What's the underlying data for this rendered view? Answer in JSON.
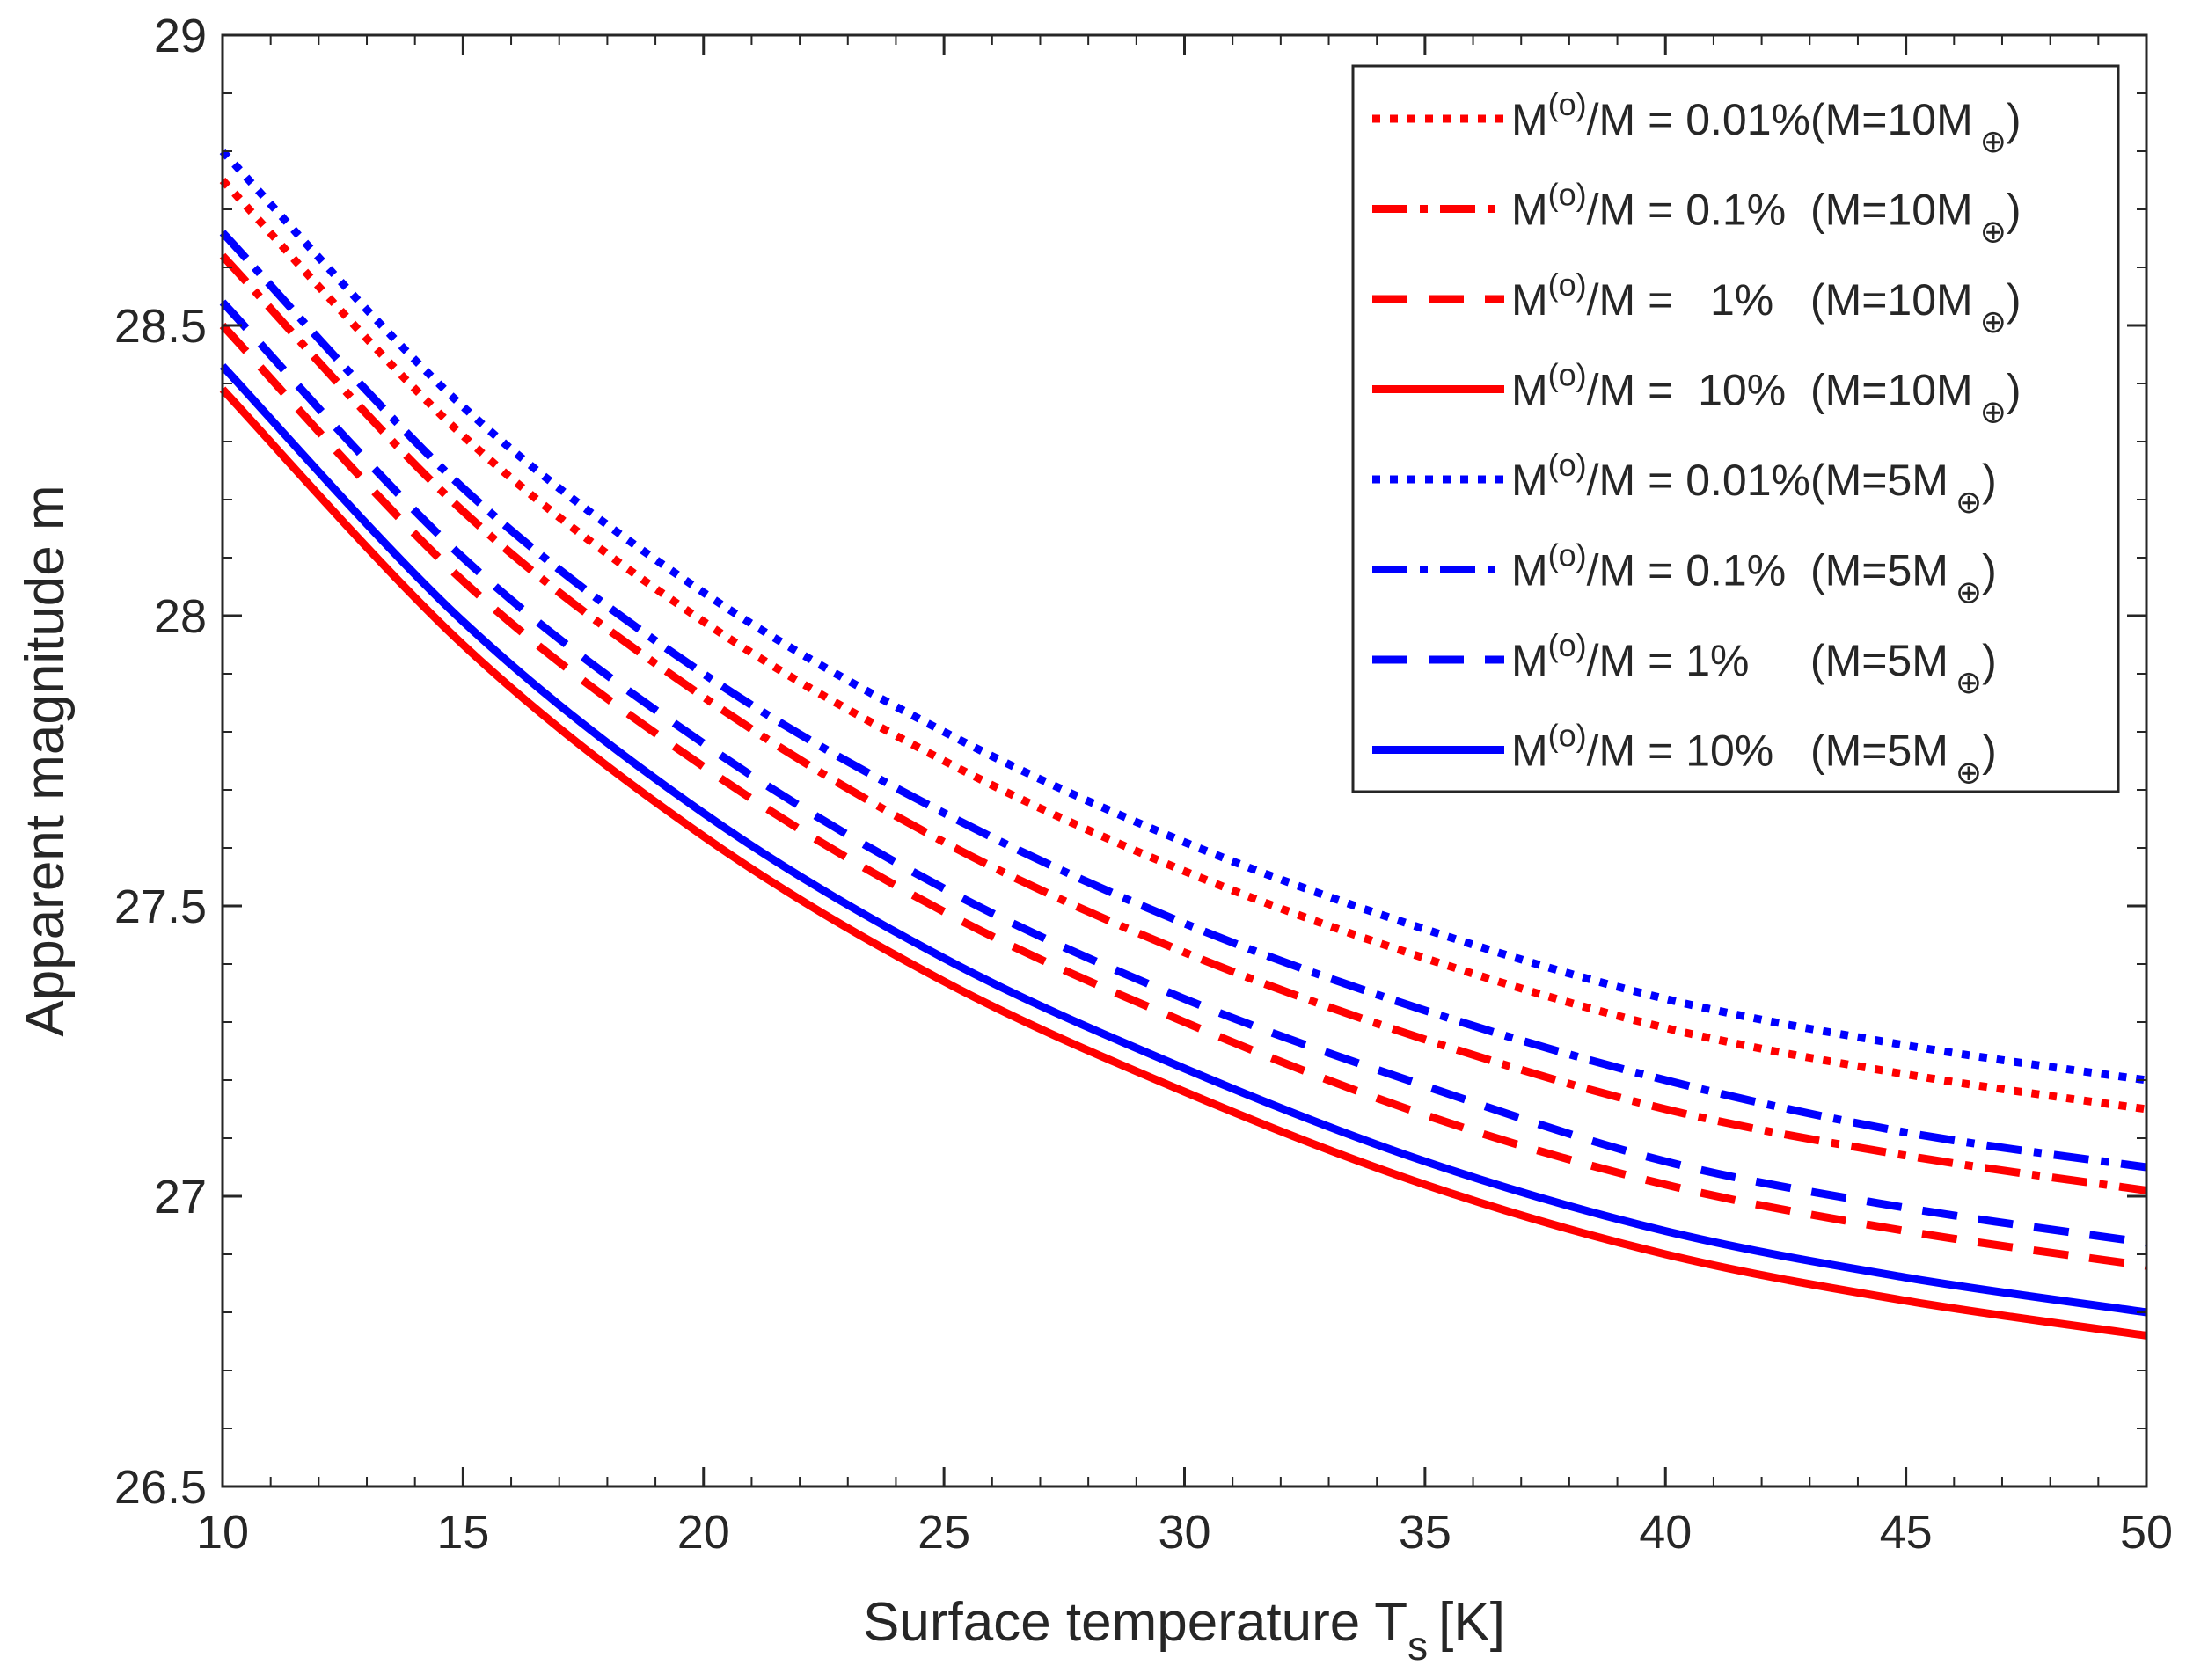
{
  "chart_data": {
    "type": "line",
    "title": "",
    "xlabel": "Surface temperature T",
    "xlabel_subscript": "s",
    "xlabel_unit": "[K]",
    "ylabel": "Apparent magnitude m",
    "xlim": [
      10,
      50
    ],
    "ylim": [
      26.5,
      29
    ],
    "xticks": [
      10,
      15,
      20,
      25,
      30,
      35,
      40,
      45,
      50
    ],
    "xtick_labels": [
      "10",
      "15",
      "20",
      "25",
      "30",
      "35",
      "40",
      "45",
      "50"
    ],
    "yticks": [
      26.5,
      27,
      27.5,
      28,
      28.5,
      29
    ],
    "ytick_labels": [
      "26.5",
      "27",
      "27.5",
      "28",
      "28.5",
      "29"
    ],
    "x": [
      10,
      15,
      20,
      25,
      30,
      35,
      40,
      45,
      50
    ],
    "grid": false,
    "legend_position": "top-right",
    "series": [
      {
        "name": "M(o)/M = 0.01%(M=10M⊕)",
        "color": "#ff0000",
        "style": "dotted",
        "values": [
          28.75,
          28.31,
          27.99,
          27.75,
          27.56,
          27.41,
          27.29,
          27.21,
          27.15
        ]
      },
      {
        "name": "M(o)/M = 0.1%  (M=10M⊕)",
        "color": "#ff0000",
        "style": "dashdot",
        "values": [
          28.62,
          28.18,
          27.86,
          27.61,
          27.42,
          27.27,
          27.15,
          27.07,
          27.01
        ]
      },
      {
        "name": "M(o)/M =   1%   (M=10M⊕)",
        "color": "#ff0000",
        "style": "dashed",
        "values": [
          28.5,
          28.06,
          27.74,
          27.49,
          27.3,
          27.14,
          27.02,
          26.94,
          26.88
        ]
      },
      {
        "name": "M(o)/M =  10%  (M=10M⊕)",
        "color": "#ff0000",
        "style": "solid",
        "values": [
          28.39,
          27.95,
          27.62,
          27.37,
          27.18,
          27.02,
          26.9,
          26.82,
          26.76
        ]
      },
      {
        "name": "M(o)/M = 0.01%(M=5M⊕)",
        "color": "#0000ff",
        "style": "dotted",
        "values": [
          28.8,
          28.36,
          28.04,
          27.8,
          27.61,
          27.46,
          27.34,
          27.26,
          27.2
        ]
      },
      {
        "name": "M(o)/M = 0.1%  (M=5M⊕)",
        "color": "#0000ff",
        "style": "dashdot",
        "values": [
          28.66,
          28.22,
          27.9,
          27.66,
          27.47,
          27.32,
          27.2,
          27.11,
          27.05
        ]
      },
      {
        "name": "M(o)/M = 1%     (M=5M⊕)",
        "color": "#0000ff",
        "style": "dashed",
        "values": [
          28.54,
          28.1,
          27.78,
          27.53,
          27.34,
          27.19,
          27.06,
          26.98,
          26.92
        ]
      },
      {
        "name": "M(o)/M = 10%   (M=5M⊕)",
        "color": "#0000ff",
        "style": "solid",
        "values": [
          28.43,
          27.99,
          27.66,
          27.41,
          27.22,
          27.06,
          26.94,
          26.86,
          26.8
        ]
      }
    ]
  },
  "legend": {
    "prefix": "M",
    "superscript": "(o)",
    "middle": "/M = ",
    "entries": [
      {
        "ratio": "0.01%",
        "mass": "(M=10M",
        "subscript": "⊕",
        "close": ")"
      },
      {
        "ratio": "0.1%  ",
        "mass": "(M=10M",
        "subscript": "⊕",
        "close": ")"
      },
      {
        "ratio": "  1%   ",
        "mass": "(M=10M",
        "subscript": "⊕",
        "close": ")"
      },
      {
        "ratio": " 10%  ",
        "mass": "(M=10M",
        "subscript": "⊕",
        "close": ")"
      },
      {
        "ratio": "0.01%",
        "mass": "(M=5M",
        "subscript": "⊕",
        "close": ")"
      },
      {
        "ratio": "0.1%  ",
        "mass": "(M=5M",
        "subscript": "⊕",
        "close": ")"
      },
      {
        "ratio": "1%     ",
        "mass": "(M=5M",
        "subscript": "⊕",
        "close": ")"
      },
      {
        "ratio": "10%   ",
        "mass": "(M=5M",
        "subscript": "⊕",
        "close": ")"
      }
    ]
  }
}
